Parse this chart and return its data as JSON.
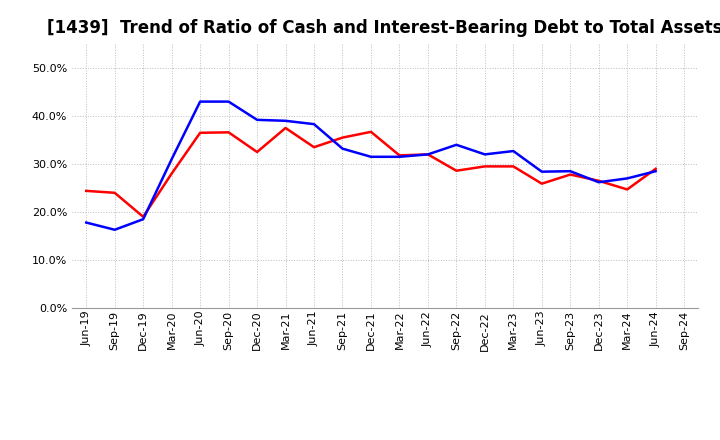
{
  "title": "[1439]  Trend of Ratio of Cash and Interest-Bearing Debt to Total Assets",
  "labels": [
    "Jun-19",
    "Sep-19",
    "Dec-19",
    "Mar-20",
    "Jun-20",
    "Sep-20",
    "Dec-20",
    "Mar-21",
    "Jun-21",
    "Sep-21",
    "Dec-21",
    "Mar-22",
    "Jun-22",
    "Sep-22",
    "Dec-22",
    "Mar-23",
    "Jun-23",
    "Sep-23",
    "Dec-23",
    "Mar-24",
    "Jun-24",
    "Sep-24"
  ],
  "cash": [
    0.244,
    0.24,
    0.19,
    0.28,
    0.365,
    0.366,
    0.325,
    0.375,
    0.335,
    0.355,
    0.367,
    0.318,
    0.32,
    0.286,
    0.295,
    0.295,
    0.259,
    0.278,
    0.265,
    0.247,
    0.29,
    null
  ],
  "ibd": [
    0.178,
    0.163,
    0.185,
    0.31,
    0.43,
    0.43,
    0.392,
    0.39,
    0.383,
    0.332,
    0.315,
    0.315,
    0.32,
    0.34,
    0.32,
    0.327,
    0.284,
    0.285,
    0.262,
    0.27,
    0.285,
    null
  ],
  "cash_color": "#ff0000",
  "ibd_color": "#0000ff",
  "background_color": "#ffffff",
  "grid_color": "#bbbbbb",
  "ylim": [
    0.0,
    0.55
  ],
  "yticks": [
    0.0,
    0.1,
    0.2,
    0.3,
    0.4,
    0.5
  ],
  "title_fontsize": 12,
  "legend_fontsize": 10,
  "tick_fontsize": 8,
  "line_width": 1.8
}
